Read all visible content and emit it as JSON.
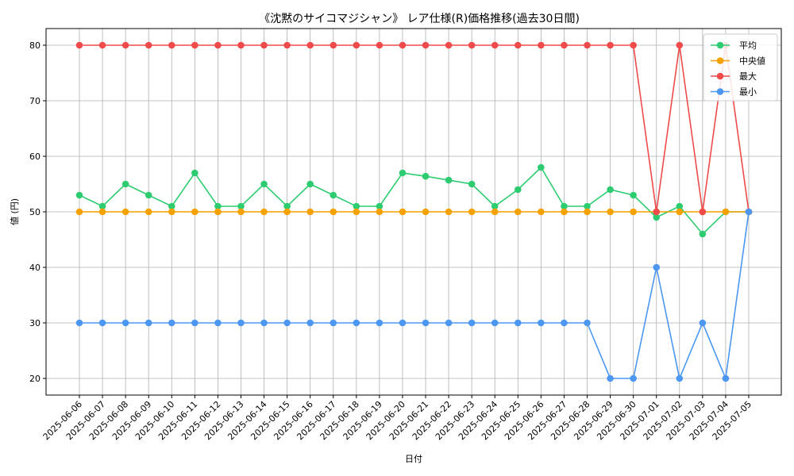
{
  "chart_data": {
    "type": "line",
    "title": "《沈黙のサイコマジシャン》 レア仕様(R)価格推移(過去30日間)",
    "xlabel": "日付",
    "ylabel": "値 (円)",
    "ylim": [
      17,
      83
    ],
    "yticks": [
      20,
      30,
      40,
      50,
      60,
      70,
      80
    ],
    "grid": true,
    "legend_position": "top-right",
    "categories": [
      "2025-06-06",
      "2025-06-07",
      "2025-06-08",
      "2025-06-09",
      "2025-06-10",
      "2025-06-11",
      "2025-06-12",
      "2025-06-13",
      "2025-06-14",
      "2025-06-15",
      "2025-06-16",
      "2025-06-17",
      "2025-06-18",
      "2025-06-19",
      "2025-06-20",
      "2025-06-21",
      "2025-06-22",
      "2025-06-23",
      "2025-06-24",
      "2025-06-25",
      "2025-06-26",
      "2025-06-27",
      "2025-06-28",
      "2025-06-29",
      "2025-06-30",
      "2025-07-01",
      "2025-07-02",
      "2025-07-03",
      "2025-07-04",
      "2025-07-05"
    ],
    "series": [
      {
        "name": "平均",
        "color": "#2ecc71",
        "values": [
          53,
          51,
          55,
          53,
          51,
          57,
          51,
          51,
          55,
          51,
          55,
          53,
          51,
          51,
          57,
          56.4,
          55.7,
          55,
          51,
          54,
          58,
          51,
          51,
          54,
          53,
          49,
          51,
          46,
          50,
          50
        ]
      },
      {
        "name": "中央値",
        "color": "#f5a100",
        "values": [
          50,
          50,
          50,
          50,
          50,
          50,
          50,
          50,
          50,
          50,
          50,
          50,
          50,
          50,
          50,
          50,
          50,
          50,
          50,
          50,
          50,
          50,
          50,
          50,
          50,
          50,
          50,
          50,
          50,
          50
        ]
      },
      {
        "name": "最大",
        "color": "#ef4b4b",
        "values": [
          80,
          80,
          80,
          80,
          80,
          80,
          80,
          80,
          80,
          80,
          80,
          80,
          80,
          80,
          80,
          80,
          80,
          80,
          80,
          80,
          80,
          80,
          80,
          80,
          80,
          50,
          80,
          50,
          80,
          50
        ]
      },
      {
        "name": "最小",
        "color": "#4b97f2",
        "values": [
          30,
          30,
          30,
          30,
          30,
          30,
          30,
          30,
          30,
          30,
          30,
          30,
          30,
          30,
          30,
          30,
          30,
          30,
          30,
          30,
          30,
          30,
          30,
          20,
          20,
          40,
          20,
          30,
          20,
          50
        ]
      }
    ]
  }
}
